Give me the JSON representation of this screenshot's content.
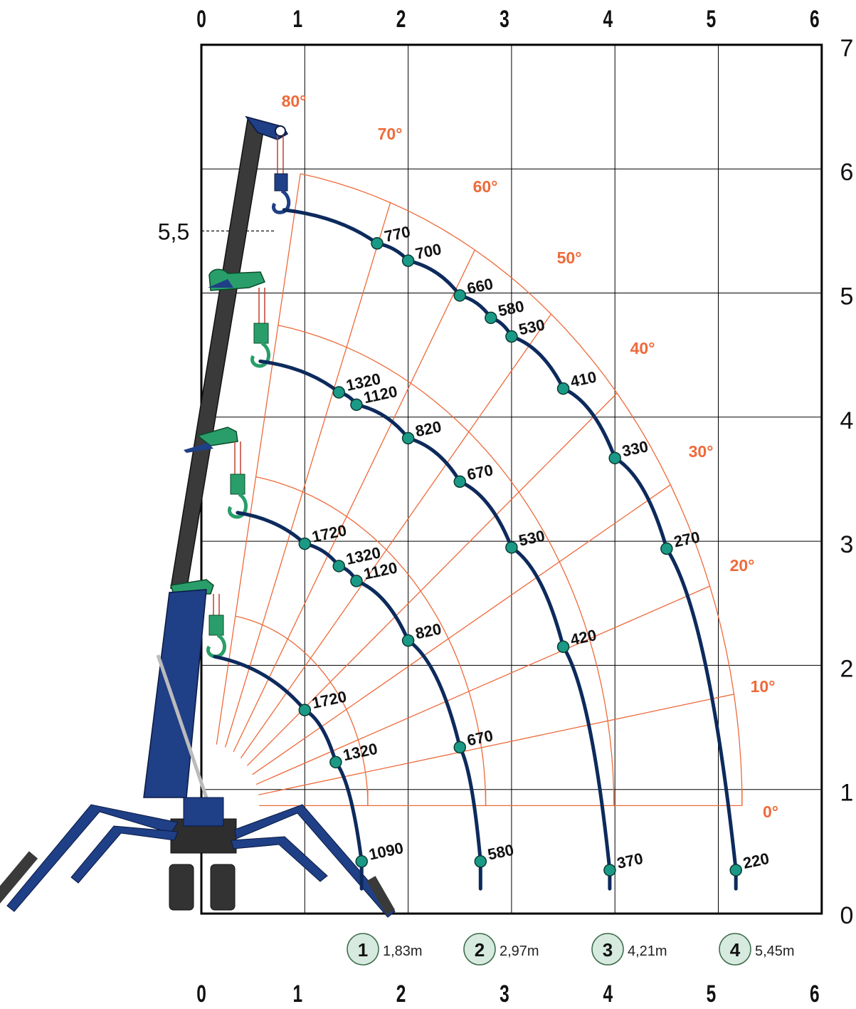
{
  "axes": {
    "x_ticks_top": [
      "0",
      "1",
      "2",
      "3",
      "4",
      "5",
      "6"
    ],
    "x_ticks_bottom": [
      "0",
      "1",
      "2",
      "3",
      "4",
      "5",
      "6"
    ],
    "y_ticks": [
      "0",
      "1",
      "2",
      "3",
      "4",
      "5",
      "6",
      "7"
    ],
    "height_marker": "5,5"
  },
  "angles": [
    "0°",
    "10°",
    "20°",
    "30°",
    "40°",
    "50°",
    "60°",
    "70°",
    "80°"
  ],
  "boom_configs": [
    {
      "id": "1",
      "length": "1,83m"
    },
    {
      "id": "2",
      "length": "2,97m"
    },
    {
      "id": "3",
      "length": "4,21m"
    },
    {
      "id": "4",
      "length": "5,45m"
    }
  ],
  "load_curves": [
    {
      "config": "1",
      "loads": [
        "1720",
        "1320",
        "1090"
      ]
    },
    {
      "config": "2",
      "loads": [
        "1720",
        "1320",
        "1120",
        "820",
        "670",
        "580"
      ]
    },
    {
      "config": "3",
      "loads": [
        "1320",
        "1120",
        "820",
        "670",
        "530",
        "420",
        "370"
      ]
    },
    {
      "config": "4",
      "loads": [
        "770",
        "700",
        "660",
        "580",
        "530",
        "410",
        "330",
        "270",
        "220"
      ]
    }
  ],
  "colors": {
    "grid": "#000000",
    "angle_lines": "#ee6a3a",
    "load_curve": "#0d2a5c",
    "load_point": "#1a9a86",
    "crane_body": "#1f3f86",
    "boom_outer": "#3a3a3a",
    "boom_head": "#2a9e6a",
    "badge_fill": "#d7eadf"
  }
}
